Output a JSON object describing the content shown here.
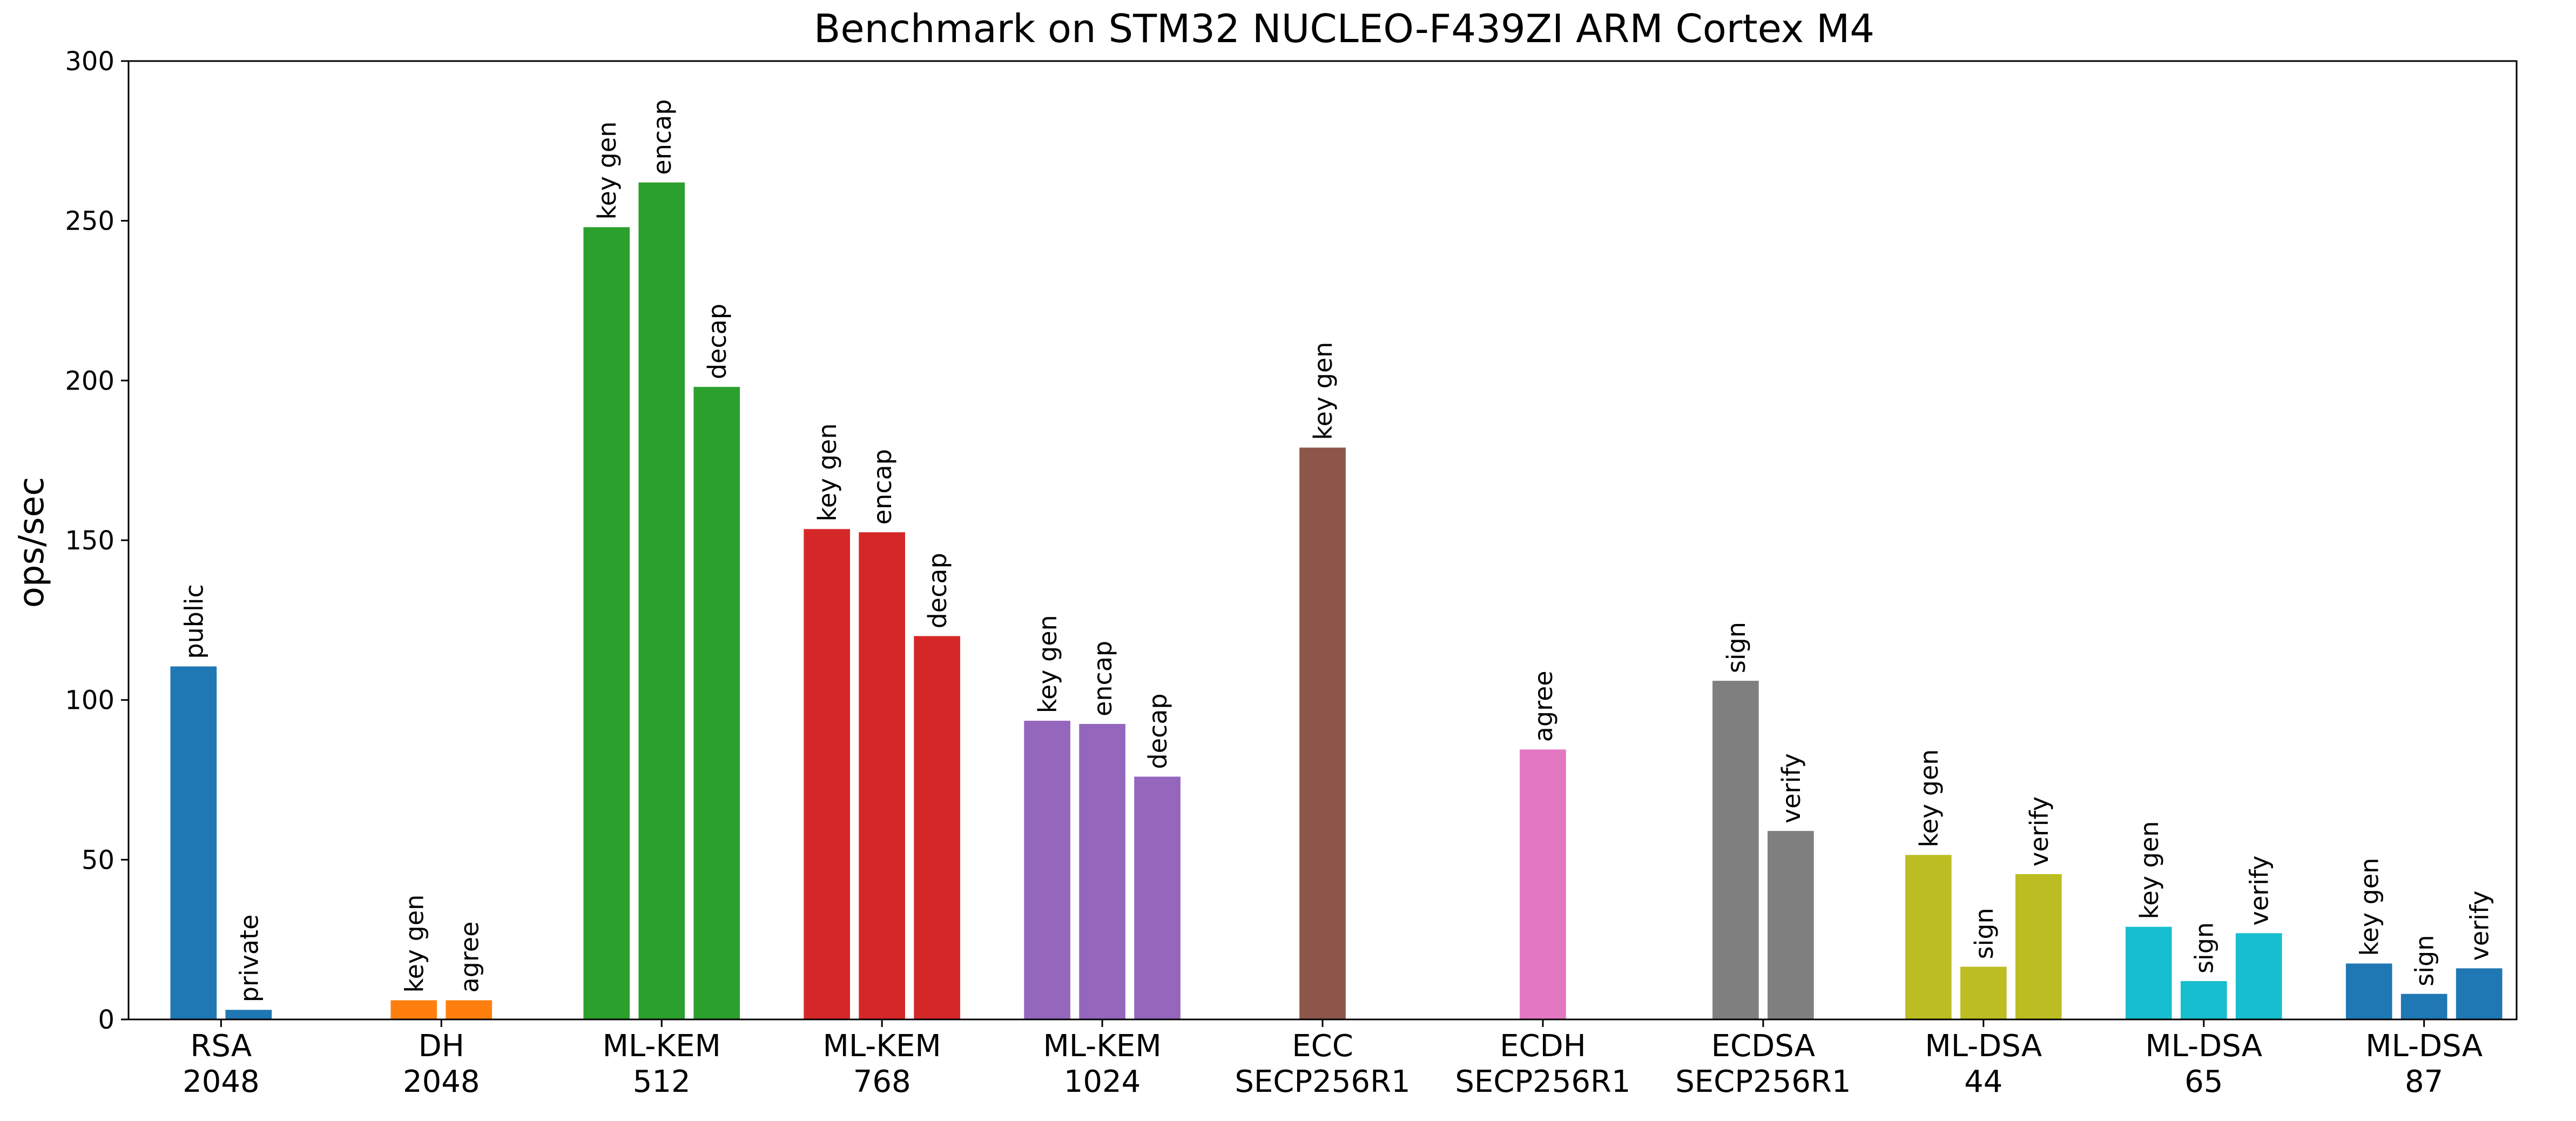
{
  "chart_data": {
    "type": "bar",
    "title": "Benchmark on STM32 NUCLEO-F439ZI ARM Cortex M4",
    "xlabel": "",
    "ylabel": "ops/sec",
    "ylim": [
      0,
      300
    ],
    "yticks": [
      0,
      50,
      100,
      150,
      200,
      250,
      300
    ],
    "grid": false,
    "legend": "none",
    "groups": [
      {
        "label": [
          "RSA",
          "2048"
        ],
        "color": "#1f77b4",
        "bars": [
          {
            "name": "public",
            "value": 110.5
          },
          {
            "name": "private",
            "value": 3
          }
        ]
      },
      {
        "label": [
          "DH",
          "2048"
        ],
        "color": "#ff7f0e",
        "bars": [
          {
            "name": "key gen",
            "value": 6
          },
          {
            "name": "agree",
            "value": 6
          }
        ]
      },
      {
        "label": [
          "ML-KEM",
          "512"
        ],
        "color": "#2ca02c",
        "bars": [
          {
            "name": "key gen",
            "value": 248
          },
          {
            "name": "encap",
            "value": 262
          },
          {
            "name": "decap",
            "value": 198
          }
        ]
      },
      {
        "label": [
          "ML-KEM",
          "768"
        ],
        "color": "#d62728",
        "bars": [
          {
            "name": "key gen",
            "value": 153.5
          },
          {
            "name": "encap",
            "value": 152.5
          },
          {
            "name": "decap",
            "value": 120
          }
        ]
      },
      {
        "label": [
          "ML-KEM",
          "1024"
        ],
        "color": "#9467bd",
        "bars": [
          {
            "name": "key gen",
            "value": 93.5
          },
          {
            "name": "encap",
            "value": 92.5
          },
          {
            "name": "decap",
            "value": 76
          }
        ]
      },
      {
        "label": [
          "ECC",
          "SECP256R1"
        ],
        "color": "#8c564b",
        "bars": [
          {
            "name": "key gen",
            "value": 179
          }
        ]
      },
      {
        "label": [
          "ECDH",
          "SECP256R1"
        ],
        "color": "#e377c2",
        "bars": [
          {
            "name": "agree",
            "value": 84.5
          }
        ]
      },
      {
        "label": [
          "ECDSA",
          "SECP256R1"
        ],
        "color": "#7f7f7f",
        "bars": [
          {
            "name": "sign",
            "value": 106
          },
          {
            "name": "verify",
            "value": 59
          }
        ]
      },
      {
        "label": [
          "ML-DSA",
          "44"
        ],
        "color": "#bcbd22",
        "bars": [
          {
            "name": "key gen",
            "value": 51.5
          },
          {
            "name": "sign",
            "value": 16.5
          },
          {
            "name": "verify",
            "value": 45.5
          }
        ]
      },
      {
        "label": [
          "ML-DSA",
          "65"
        ],
        "color": "#17becf",
        "bars": [
          {
            "name": "key gen",
            "value": 29
          },
          {
            "name": "sign",
            "value": 12
          },
          {
            "name": "verify",
            "value": 27
          }
        ]
      },
      {
        "label": [
          "ML-DSA",
          "87"
        ],
        "color": "#1f77b4",
        "bars": [
          {
            "name": "key gen",
            "value": 17.5
          },
          {
            "name": "sign",
            "value": 8
          },
          {
            "name": "verify",
            "value": 16
          }
        ]
      }
    ]
  }
}
